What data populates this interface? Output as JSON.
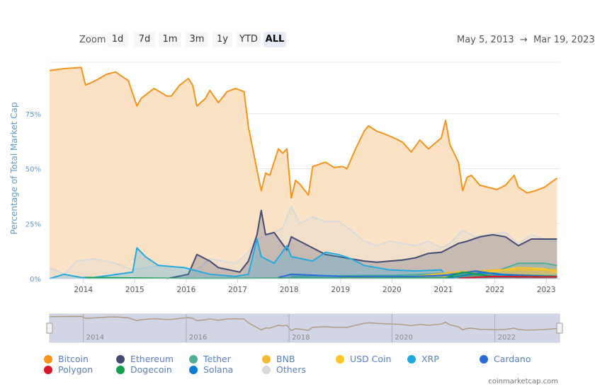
{
  "toolbar": {
    "zoom_label": "Zoom",
    "buttons": [
      "1d",
      "7d",
      "1m",
      "3m",
      "1y",
      "YTD",
      "ALL"
    ],
    "active": "ALL",
    "range_from": "May 5, 2013",
    "range_arrow": "→",
    "range_to": "Mar 19, 2023"
  },
  "credit": "coinmarketcap.com",
  "chart_data": {
    "type": "area",
    "title": "",
    "ylabel": "Percentage of Total Market Cap",
    "xlabel": "",
    "ylim": [
      0,
      100
    ],
    "y_ticks": [
      "0%",
      "25%",
      "50%",
      "75%"
    ],
    "x_ticks": [
      "2014",
      "2015",
      "2016",
      "2017",
      "2018",
      "2019",
      "2020",
      "2021",
      "2022",
      "2023"
    ],
    "navigator_ticks": [
      "2014",
      "2016",
      "2018",
      "2020",
      "2022"
    ],
    "x_range": [
      "2013-05",
      "2023-03"
    ],
    "grid": true,
    "legend": "bottom",
    "series": [
      {
        "name": "Others",
        "color": "#d9d9d9",
        "points": [
          [
            "2013-05",
            5
          ],
          [
            "2013-08",
            2
          ],
          [
            "2013-11",
            8
          ],
          [
            "2014-03",
            9
          ],
          [
            "2014-08",
            7
          ],
          [
            "2014-12",
            4
          ],
          [
            "2015-06",
            6
          ],
          [
            "2015-12",
            5
          ],
          [
            "2016-03",
            4
          ],
          [
            "2016-06",
            9
          ],
          [
            "2016-12",
            7
          ],
          [
            "2017-03",
            12
          ],
          [
            "2017-05",
            18
          ],
          [
            "2017-08",
            20
          ],
          [
            "2017-11",
            23
          ],
          [
            "2018-01",
            33
          ],
          [
            "2018-03",
            25
          ],
          [
            "2018-06",
            28
          ],
          [
            "2018-09",
            26
          ],
          [
            "2018-12",
            26
          ],
          [
            "2019-03",
            22
          ],
          [
            "2019-06",
            17
          ],
          [
            "2019-09",
            15
          ],
          [
            "2019-12",
            17
          ],
          [
            "2020-03",
            16
          ],
          [
            "2020-06",
            15
          ],
          [
            "2020-09",
            17
          ],
          [
            "2020-12",
            14
          ],
          [
            "2021-02",
            16
          ],
          [
            "2021-05",
            22
          ],
          [
            "2021-08",
            19
          ],
          [
            "2021-11",
            20
          ],
          [
            "2022-03",
            21
          ],
          [
            "2022-06",
            16
          ],
          [
            "2022-09",
            20
          ],
          [
            "2022-12",
            18
          ],
          [
            "2023-03",
            17
          ]
        ]
      },
      {
        "name": "Ethereum",
        "color": "#454a75",
        "points": [
          [
            "2015-08",
            0
          ],
          [
            "2016-01",
            2
          ],
          [
            "2016-03",
            11
          ],
          [
            "2016-06",
            8
          ],
          [
            "2016-08",
            5
          ],
          [
            "2017-01",
            3
          ],
          [
            "2017-03",
            8
          ],
          [
            "2017-05",
            20
          ],
          [
            "2017-06",
            31
          ],
          [
            "2017-07",
            20
          ],
          [
            "2017-09",
            21
          ],
          [
            "2017-12",
            13
          ],
          [
            "2018-01",
            19
          ],
          [
            "2018-03",
            17
          ],
          [
            "2018-06",
            14
          ],
          [
            "2018-09",
            11
          ],
          [
            "2018-12",
            10
          ],
          [
            "2019-03",
            9
          ],
          [
            "2019-06",
            8
          ],
          [
            "2019-09",
            7.5
          ],
          [
            "2019-12",
            8
          ],
          [
            "2020-03",
            8.5
          ],
          [
            "2020-06",
            9.5
          ],
          [
            "2020-09",
            11.5
          ],
          [
            "2020-12",
            12
          ],
          [
            "2021-01",
            13
          ],
          [
            "2021-04",
            16
          ],
          [
            "2021-06",
            17
          ],
          [
            "2021-09",
            19
          ],
          [
            "2021-12",
            20
          ],
          [
            "2022-03",
            19
          ],
          [
            "2022-06",
            15
          ],
          [
            "2022-09",
            18
          ],
          [
            "2022-12",
            18
          ],
          [
            "2023-03",
            18
          ]
        ]
      },
      {
        "name": "XRP",
        "color": "#23a9e1",
        "points": [
          [
            "2013-05",
            0
          ],
          [
            "2013-08",
            2
          ],
          [
            "2013-12",
            0.5
          ],
          [
            "2014-03",
            0.5
          ],
          [
            "2014-12",
            3
          ],
          [
            "2015-01",
            14
          ],
          [
            "2015-03",
            10
          ],
          [
            "2015-06",
            6
          ],
          [
            "2015-12",
            5
          ],
          [
            "2016-06",
            2
          ],
          [
            "2016-12",
            1
          ],
          [
            "2017-03",
            2
          ],
          [
            "2017-05",
            18
          ],
          [
            "2017-06",
            10
          ],
          [
            "2017-09",
            7
          ],
          [
            "2017-12",
            15
          ],
          [
            "2018-01",
            10
          ],
          [
            "2018-06",
            8
          ],
          [
            "2018-09",
            12
          ],
          [
            "2018-12",
            11
          ],
          [
            "2019-03",
            9
          ],
          [
            "2019-06",
            6
          ],
          [
            "2019-12",
            4
          ],
          [
            "2020-06",
            3.5
          ],
          [
            "2020-12",
            4
          ],
          [
            "2021-01",
            1.5
          ],
          [
            "2021-06",
            2
          ],
          [
            "2021-12",
            1.5
          ],
          [
            "2022-06",
            1.5
          ],
          [
            "2023-03",
            1.5
          ]
        ]
      },
      {
        "name": "Tether",
        "color": "#50af95",
        "points": [
          [
            "2018-01",
            1
          ],
          [
            "2019-06",
            1.5
          ],
          [
            "2020-01",
            1.5
          ],
          [
            "2020-08",
            2
          ],
          [
            "2020-12",
            2.5
          ],
          [
            "2021-06",
            3
          ],
          [
            "2022-01",
            3.5
          ],
          [
            "2022-06",
            7
          ],
          [
            "2022-12",
            7
          ],
          [
            "2023-03",
            6
          ]
        ]
      },
      {
        "name": "BNB",
        "color": "#f3ba2f",
        "points": [
          [
            "2019-01",
            0.8
          ],
          [
            "2020-06",
            1
          ],
          [
            "2021-03",
            3
          ],
          [
            "2022-01",
            4
          ],
          [
            "2022-12",
            4
          ],
          [
            "2023-03",
            4
          ]
        ]
      },
      {
        "name": "USD Coin",
        "color": "#fdc723",
        "points": [
          [
            "2020-12",
            0.5
          ],
          [
            "2021-06",
            1.5
          ],
          [
            "2022-06",
            5
          ],
          [
            "2022-12",
            4.5
          ],
          [
            "2023-03",
            3
          ]
        ]
      },
      {
        "name": "Cardano",
        "color": "#2a6bd6",
        "points": [
          [
            "2017-10",
            0.5
          ],
          [
            "2018-01",
            2
          ],
          [
            "2019-01",
            1
          ],
          [
            "2020-06",
            1
          ],
          [
            "2021-01",
            1.5
          ],
          [
            "2021-08",
            3.5
          ],
          [
            "2022-01",
            2
          ],
          [
            "2023-03",
            1
          ]
        ]
      },
      {
        "name": "Solana",
        "color": "#0a7cd3",
        "points": [
          [
            "2021-01",
            0.2
          ],
          [
            "2021-09",
            2.5
          ],
          [
            "2021-12",
            2.5
          ],
          [
            "2022-06",
            1
          ],
          [
            "2023-03",
            0.8
          ]
        ]
      },
      {
        "name": "Dogecoin",
        "color": "#12a04b",
        "points": [
          [
            "2014-01",
            0.5
          ],
          [
            "2016-01",
            0.1
          ],
          [
            "2021-01",
            0.3
          ],
          [
            "2021-05",
            3
          ],
          [
            "2021-12",
            1
          ],
          [
            "2023-03",
            1
          ]
        ]
      },
      {
        "name": "Polygon",
        "color": "#d9142b",
        "points": [
          [
            "2021-04",
            0.2
          ],
          [
            "2021-12",
            1
          ],
          [
            "2022-12",
            0.8
          ],
          [
            "2023-03",
            0.9
          ]
        ]
      },
      {
        "name": "Bitcoin",
        "color": "#f7931a",
        "points": [
          [
            "2013-05",
            94.6
          ],
          [
            "2013-08",
            95.5
          ],
          [
            "2013-12",
            96
          ],
          [
            "2014-01",
            88
          ],
          [
            "2014-03",
            89.7
          ],
          [
            "2014-06",
            93
          ],
          [
            "2014-08",
            94
          ],
          [
            "2014-11",
            90
          ],
          [
            "2015-01",
            78.5
          ],
          [
            "2015-02",
            82
          ],
          [
            "2015-05",
            86.5
          ],
          [
            "2015-08",
            83
          ],
          [
            "2015-09",
            83
          ],
          [
            "2015-11",
            88
          ],
          [
            "2016-01",
            91
          ],
          [
            "2016-02",
            88
          ],
          [
            "2016-03",
            78.5
          ],
          [
            "2016-05",
            82
          ],
          [
            "2016-06",
            85.6
          ],
          [
            "2016-08",
            80
          ],
          [
            "2016-10",
            85
          ],
          [
            "2016-12",
            86.5
          ],
          [
            "2017-02",
            85
          ],
          [
            "2017-03",
            69
          ],
          [
            "2017-05",
            49.5
          ],
          [
            "2017-06",
            40
          ],
          [
            "2017-07",
            48
          ],
          [
            "2017-08",
            47
          ],
          [
            "2017-10",
            59
          ],
          [
            "2017-11",
            57
          ],
          [
            "2017-12",
            59
          ],
          [
            "2018-01",
            36.7
          ],
          [
            "2018-02",
            44.7
          ],
          [
            "2018-03",
            43
          ],
          [
            "2018-05",
            38
          ],
          [
            "2018-06",
            51
          ],
          [
            "2018-09",
            53
          ],
          [
            "2018-11",
            50.5
          ],
          [
            "2019-01",
            51
          ],
          [
            "2019-02",
            50
          ],
          [
            "2019-04",
            59
          ],
          [
            "2019-06",
            67
          ],
          [
            "2019-07",
            69.5
          ],
          [
            "2019-09",
            67
          ],
          [
            "2019-11",
            65.6
          ],
          [
            "2020-01",
            64
          ],
          [
            "2020-03",
            62
          ],
          [
            "2020-05",
            57.6
          ],
          [
            "2020-07",
            63
          ],
          [
            "2020-09",
            59
          ],
          [
            "2020-12",
            64
          ],
          [
            "2021-01",
            72
          ],
          [
            "2021-02",
            61
          ],
          [
            "2021-04",
            53
          ],
          [
            "2021-05",
            40
          ],
          [
            "2021-06",
            46
          ],
          [
            "2021-07",
            47
          ],
          [
            "2021-09",
            42.5
          ],
          [
            "2021-11",
            41.5
          ],
          [
            "2022-01",
            40.5
          ],
          [
            "2022-03",
            42.5
          ],
          [
            "2022-05",
            47
          ],
          [
            "2022-06",
            41.5
          ],
          [
            "2022-08",
            39
          ],
          [
            "2022-10",
            40
          ],
          [
            "2022-12",
            41.5
          ],
          [
            "2023-03",
            45.7
          ]
        ]
      }
    ],
    "legend_order": [
      "Bitcoin",
      "Ethereum",
      "Tether",
      "BNB",
      "USD Coin",
      "XRP",
      "Cardano",
      "Polygon",
      "Dogecoin",
      "Solana",
      "Others"
    ]
  }
}
